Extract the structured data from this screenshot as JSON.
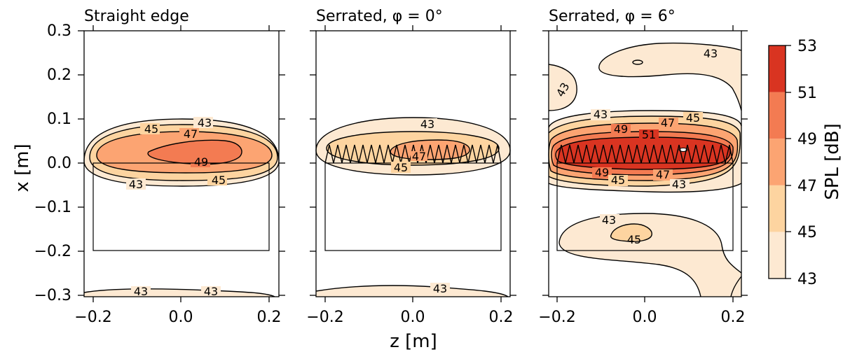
{
  "chart_data": [
    {
      "type": "heatmap",
      "title": "Straight edge",
      "xlabel": "z [m]",
      "ylabel": "x [m]",
      "xlim": [
        -0.22,
        0.22
      ],
      "ylim": [
        -0.3,
        0.3
      ],
      "x_ticks": [
        "−0.2",
        "0.0",
        "0.2"
      ],
      "y_ticks": [
        "−0.3",
        "−0.2",
        "−0.1",
        "0.0",
        "0.1",
        "0.2",
        "0.3"
      ],
      "contour_labels": [
        "43",
        "45",
        "47",
        "49",
        "45",
        "43",
        "43",
        "43"
      ],
      "airfoil": {
        "z": [
          -0.2,
          0.2
        ],
        "x": [
          -0.2,
          0.0
        ]
      },
      "serrated": false
    },
    {
      "type": "heatmap",
      "title": "Serrated, φ = 0°",
      "xlabel": "z [m]",
      "xlim": [
        -0.22,
        0.22
      ],
      "ylim": [
        -0.3,
        0.3
      ],
      "x_ticks": [
        "−0.2",
        "0.0",
        "0.2"
      ],
      "contour_labels": [
        "43",
        "47",
        "45",
        "43"
      ],
      "airfoil": {
        "z": [
          -0.2,
          0.2
        ],
        "x": [
          -0.2,
          0.0
        ]
      },
      "serrated": true
    },
    {
      "type": "heatmap",
      "title": "Serrated, φ = 6°",
      "xlabel": "z [m]",
      "xlim": [
        -0.22,
        0.22
      ],
      "ylim": [
        -0.3,
        0.3
      ],
      "x_ticks": [
        "−0.2",
        "0.0",
        "0.2"
      ],
      "contour_labels": [
        "43",
        "43",
        "43",
        "47",
        "45",
        "49",
        "51",
        "49",
        "45",
        "47",
        "43",
        "43",
        "45"
      ],
      "airfoil": {
        "z": [
          -0.2,
          0.2
        ],
        "x": [
          -0.2,
          0.0
        ]
      },
      "serrated": true
    }
  ],
  "shared": {
    "xlabel": "z [m]",
    "ylabel": "x [m]"
  },
  "colorbar": {
    "label": "SPL [dB]",
    "ticks": [
      "53",
      "51",
      "49",
      "47",
      "45",
      "43"
    ],
    "levels": [
      43,
      45,
      47,
      49,
      51,
      53
    ],
    "colors": [
      "#fde9d2",
      "#fdd4a0",
      "#fca472",
      "#f37b52",
      "#d93421"
    ]
  }
}
